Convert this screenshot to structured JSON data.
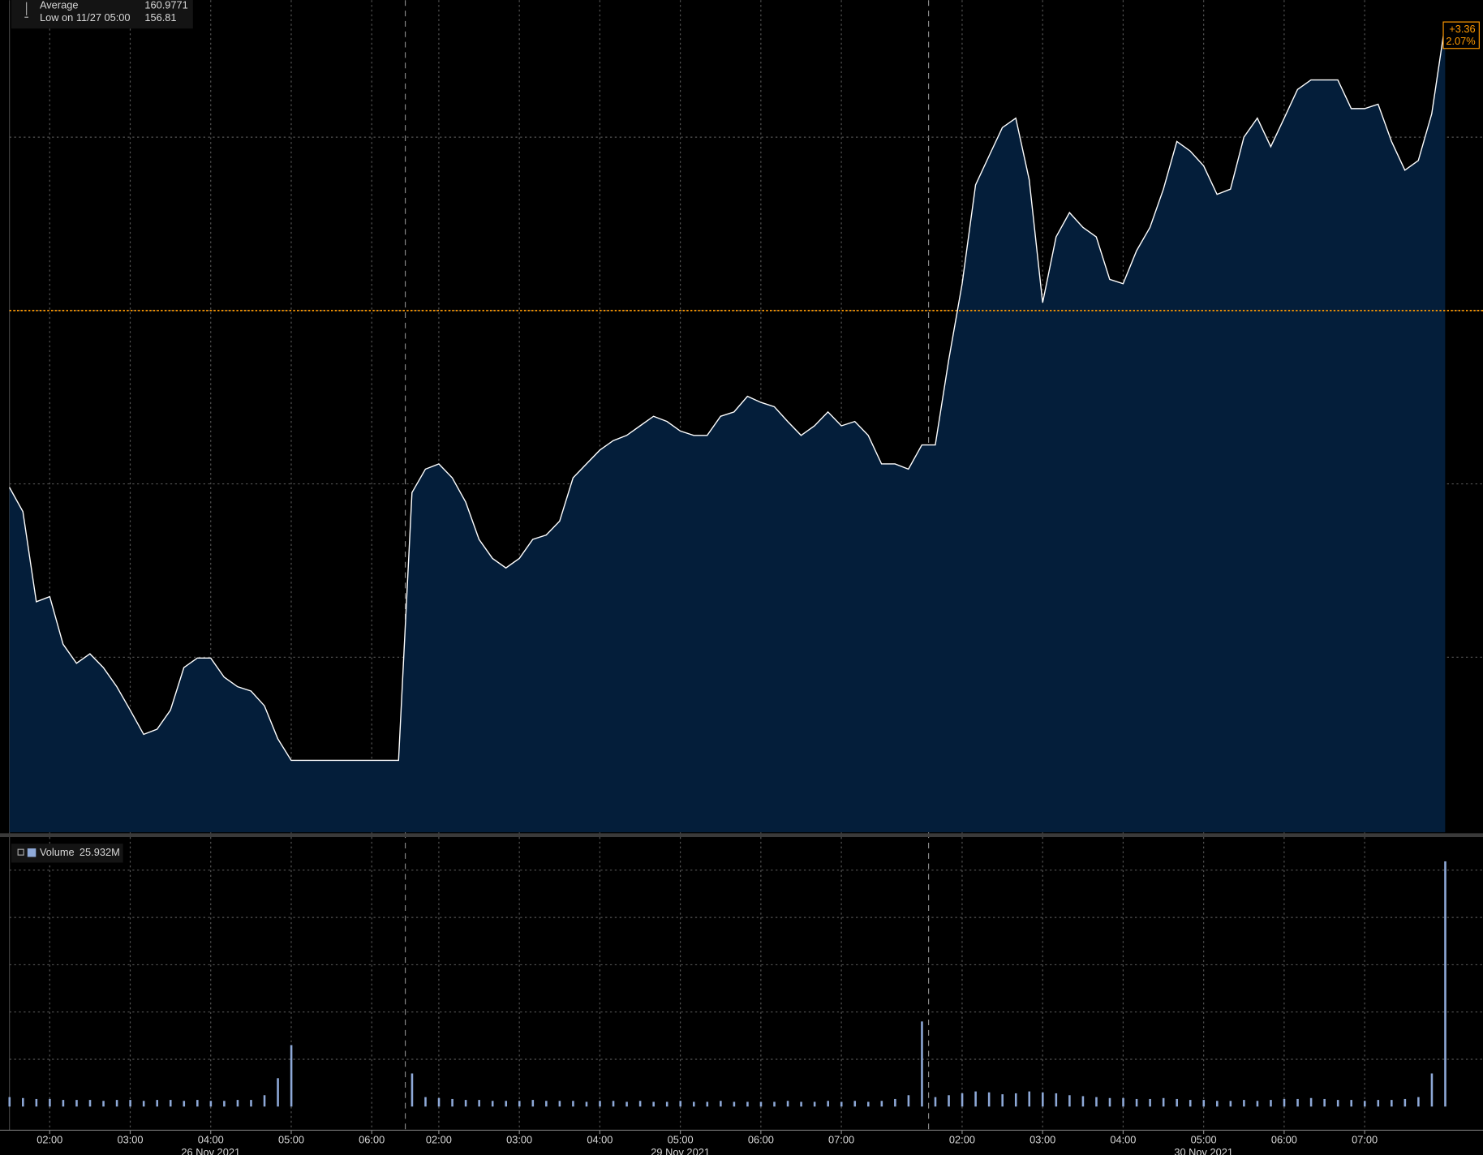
{
  "chart_data": {
    "type": "area",
    "xlim": [
      0,
      107
    ],
    "xticks": [
      {
        "value": 3,
        "label": "02:00"
      },
      {
        "value": 9,
        "label": "03:00"
      },
      {
        "value": 15,
        "label": "04:00"
      },
      {
        "value": 21,
        "label": "05:00"
      },
      {
        "value": 27,
        "label": "06:00"
      },
      {
        "value": 32,
        "label": "02:00"
      },
      {
        "value": 38,
        "label": "03:00"
      },
      {
        "value": 44,
        "label": "04:00"
      },
      {
        "value": 50,
        "label": "05:00"
      },
      {
        "value": 56,
        "label": "06:00"
      },
      {
        "value": 62,
        "label": "07:00"
      },
      {
        "value": 71,
        "label": "02:00"
      },
      {
        "value": 77,
        "label": "03:00"
      },
      {
        "value": 83,
        "label": "04:00"
      },
      {
        "value": 89,
        "label": "05:00"
      },
      {
        "value": 95,
        "label": "06:00"
      },
      {
        "value": 101,
        "label": "07:00"
      }
    ],
    "day_labels": [
      {
        "value": 15,
        "label": "26 Nov 2021"
      },
      {
        "value": 50,
        "label": "29 Nov 2021"
      },
      {
        "value": 89,
        "label": "30 Nov 2021"
      }
    ],
    "session_breaks": [
      29.5,
      68.5
    ],
    "ylim": [
      155.98,
      165.58
    ],
    "yticks": [
      158,
      160,
      162,
      164
    ],
    "grid": true,
    "ref_line": 162,
    "ref_color": "#ff9900",
    "price": {
      "color": "#ffffff",
      "fill": "#041e3a",
      "values": [
        159.96,
        159.68,
        158.64,
        158.7,
        158.15,
        157.93,
        158.04,
        157.88,
        157.66,
        157.39,
        157.11,
        157.17,
        157.39,
        157.88,
        157.99,
        157.99,
        157.77,
        157.66,
        157.61,
        157.44,
        157.06,
        156.81,
        156.81,
        156.81,
        156.81,
        156.81,
        156.81,
        156.81,
        156.81,
        156.81,
        159.9,
        160.17,
        160.23,
        160.07,
        159.79,
        159.36,
        159.14,
        159.03,
        159.14,
        159.36,
        159.41,
        159.57,
        160.07,
        160.23,
        160.39,
        160.5,
        160.56,
        160.67,
        160.78,
        160.72,
        160.61,
        160.56,
        160.56,
        160.78,
        160.83,
        161.01,
        160.94,
        160.89,
        160.72,
        160.56,
        160.67,
        160.83,
        160.67,
        160.72,
        160.56,
        160.23,
        160.23,
        160.17,
        160.45,
        160.45,
        161.43,
        162.31,
        163.45,
        163.78,
        164.11,
        164.22,
        163.51,
        162.09,
        162.85,
        163.13,
        162.96,
        162.85,
        162.36,
        162.31,
        162.69,
        162.96,
        163.4,
        163.95,
        163.84,
        163.67,
        163.34,
        163.4,
        164.0,
        164.22,
        163.89,
        164.22,
        164.55,
        164.66,
        164.66,
        164.66,
        164.33,
        164.33,
        164.38,
        163.95,
        163.62,
        163.73,
        164.27,
        165.31
      ]
    },
    "legend": [
      {
        "label": "Average",
        "value": 160.9771
      },
      {
        "label": "Low on 11/27 05:00",
        "value": 156.81
      }
    ],
    "change": {
      "value": 3.36,
      "label": "+3.36"
    },
    "change_pct": {
      "value": 2.07,
      "label": "2.07%"
    },
    "volume": {
      "name": "Volume",
      "last_label": "25.932M",
      "color": "#8ea9d8",
      "ylim": [
        0,
        28.5
      ],
      "yticks": [
        5,
        10,
        15,
        20,
        25
      ],
      "values": [
        1.0,
        0.9,
        0.8,
        0.8,
        0.7,
        0.7,
        0.7,
        0.6,
        0.7,
        0.7,
        0.6,
        0.7,
        0.7,
        0.6,
        0.7,
        0.6,
        0.6,
        0.7,
        0.7,
        1.2,
        3.0,
        6.5,
        0,
        0,
        0,
        0,
        0,
        0,
        0,
        0,
        3.5,
        1.0,
        0.9,
        0.8,
        0.7,
        0.7,
        0.6,
        0.6,
        0.6,
        0.7,
        0.6,
        0.6,
        0.6,
        0.5,
        0.6,
        0.6,
        0.5,
        0.6,
        0.5,
        0.5,
        0.6,
        0.5,
        0.5,
        0.6,
        0.5,
        0.5,
        0.5,
        0.5,
        0.6,
        0.5,
        0.5,
        0.6,
        0.5,
        0.6,
        0.5,
        0.6,
        0.8,
        1.2,
        9.0,
        1.0,
        1.2,
        1.4,
        1.6,
        1.5,
        1.3,
        1.4,
        1.6,
        1.5,
        1.4,
        1.2,
        1.1,
        1.0,
        0.9,
        0.9,
        0.8,
        0.8,
        0.9,
        0.8,
        0.7,
        0.7,
        0.6,
        0.6,
        0.7,
        0.6,
        0.7,
        0.8,
        0.8,
        0.9,
        0.8,
        0.7,
        0.7,
        0.6,
        0.7,
        0.7,
        0.8,
        1.0,
        3.5,
        25.932
      ]
    }
  }
}
